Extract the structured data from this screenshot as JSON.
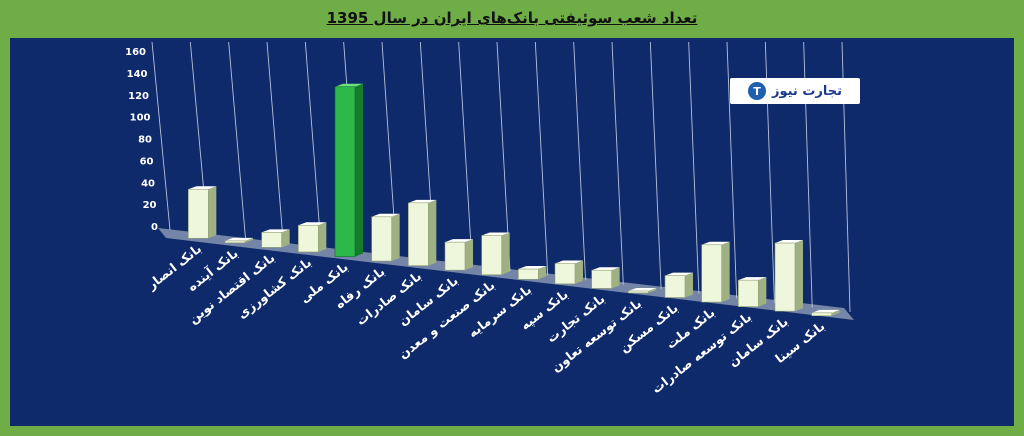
{
  "chart_data": {
    "type": "bar",
    "title": "تعداد شعب سوئیفتی بانک‌های ایران در سال 1395",
    "categories": [
      "بانک انصار",
      "بانک آینده",
      "بانک اقتصاد نوین",
      "بانک کشاورزی",
      "بانک ملی",
      "بانک رفاه",
      "بانک صادرات",
      "بانک سامان",
      "بانک صنعت و معدن",
      "بانک سرمایه",
      "بانک سپه",
      "بانک تجارت",
      "بانک توسعه تعاون",
      "بانک مسکن",
      "بانک ملت",
      "بانک توسعه صادرات",
      "بانک سامان",
      "بانک سینا"
    ],
    "values": [
      45,
      1,
      14,
      25,
      160,
      42,
      60,
      27,
      38,
      10,
      20,
      18,
      2,
      22,
      58,
      27,
      70,
      3
    ],
    "highlight_index": 4,
    "yticks": [
      "0",
      "20",
      "40",
      "60",
      "80",
      "100",
      "120",
      "140",
      "160"
    ],
    "ylim": [
      0,
      160
    ],
    "grid": true,
    "colors": {
      "bar": "#eef6dc",
      "bar_side": "#9fb083",
      "highlight": "#2db84a",
      "highlight_side": "#157a2a",
      "grid": "#c8d3ea",
      "axis_text": "#ffffff"
    }
  },
  "logo": {
    "mark": "T",
    "text": "تجارت نیوز"
  }
}
